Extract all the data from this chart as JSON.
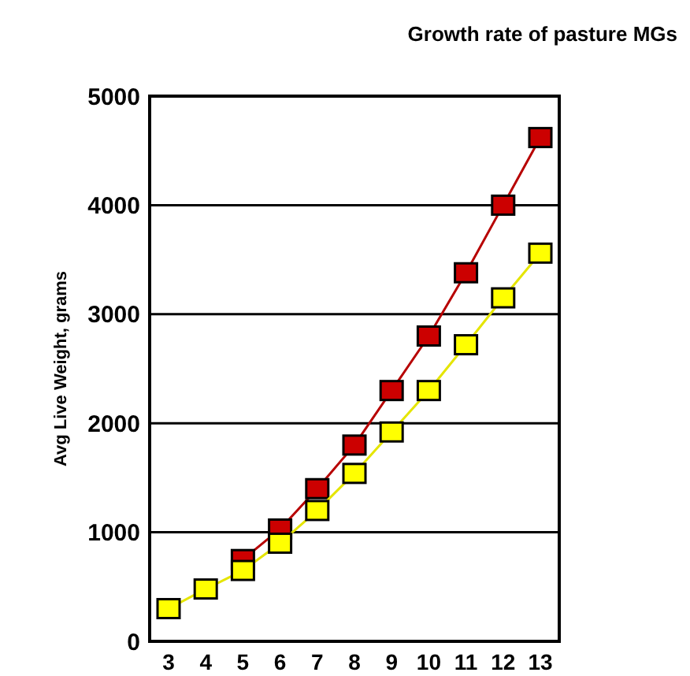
{
  "chart_data": {
    "type": "line",
    "title": "Growth rate of pasture MGs",
    "ylabel": "Avg Live Weight, grams",
    "categories": [
      "3",
      "4",
      "5",
      "6",
      "7",
      "8",
      "9",
      "10",
      "11",
      "12",
      "13"
    ],
    "series": [
      {
        "color": "#cc0000",
        "values": [
          null,
          null,
          750,
          1030,
          1400,
          1800,
          2300,
          2800,
          3380,
          4000,
          4620
        ]
      },
      {
        "color": "#ffff00",
        "values": [
          300,
          480,
          650,
          900,
          1200,
          1540,
          1920,
          2300,
          2720,
          3150,
          3560
        ]
      }
    ],
    "ylim": [
      0,
      5000
    ],
    "yticks": [
      0,
      1000,
      2000,
      3000,
      4000,
      5000
    ],
    "grid": "y",
    "marker": "square",
    "line_style": "solid"
  }
}
